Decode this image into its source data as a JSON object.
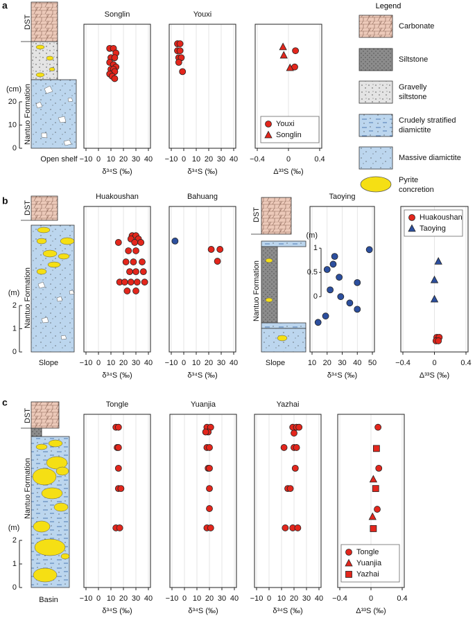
{
  "panel_labels": [
    "a",
    "b",
    "c"
  ],
  "legend": {
    "title": "Legend",
    "items": [
      "Carbonate",
      "Siltstone",
      "Gravelly siltstone",
      "Crudely stratified diamictite",
      "Massive diamictite",
      "Pyrite concretion"
    ]
  },
  "columns": [
    {
      "top": "DST",
      "formation": "Nantuo Formation",
      "unit": "(cm)",
      "ylim": [
        0,
        53.4
      ],
      "yticks": [
        0,
        10,
        20
      ],
      "setting": "Open shelf"
    },
    {
      "top": "DST",
      "formation": "Nantuo Formation",
      "unit": "(m)",
      "ylim": [
        0,
        6.27
      ],
      "yticks": [
        0,
        1,
        2
      ],
      "setting": "Slope"
    },
    {
      "top": "DST",
      "formation": "Nantuo Formation",
      "setting": "Slope"
    },
    {
      "top": "DST",
      "formation": "Nantuo Formation",
      "unit": "(m)",
      "ylim": [
        0,
        7.35
      ],
      "yticks": [
        0,
        1,
        2
      ],
      "setting": "Basin"
    }
  ],
  "chart_data": [
    {
      "type": "scatter",
      "title": "Songlin",
      "xlabel": "δ³⁴S (‰)",
      "xlim": [
        -10,
        40
      ],
      "xticks": [
        {
          "value": -10,
          "label": "−10"
        },
        0,
        10,
        20,
        30,
        40
      ],
      "ylim": [
        0,
        53.4
      ],
      "grid": true,
      "series": [
        {
          "color": "#e3261c",
          "marker": "circle",
          "x": [
            9,
            12,
            14,
            10,
            13,
            9,
            12,
            14,
            10,
            12,
            13,
            9,
            11,
            13
          ],
          "values": [
            43,
            43,
            41,
            39,
            39,
            37,
            36,
            35,
            34,
            34,
            33,
            32,
            31,
            30
          ]
        }
      ]
    },
    {
      "type": "scatter",
      "title": "Youxi",
      "xlabel": "δ³⁴S (‰)",
      "xlim": [
        -10,
        40
      ],
      "xticks": [
        {
          "value": -10,
          "label": "−10"
        },
        0,
        10,
        20,
        30,
        40
      ],
      "ylim": [
        0,
        53.4
      ],
      "grid": true,
      "series": [
        {
          "color": "#e3261c",
          "marker": "circle",
          "x": [
            -5,
            -3,
            -5,
            -3,
            -4,
            -2,
            -4,
            -1
          ],
          "values": [
            45,
            45,
            42,
            42,
            39,
            39,
            37,
            33
          ]
        }
      ]
    },
    {
      "type": "scatter",
      "xlabel": "Δ³³S (‰)",
      "xlim": [
        -0.4,
        0.4
      ],
      "xticks": [
        {
          "value": -0.4,
          "label": "−0.4"
        },
        0,
        0.4
      ],
      "ylim": [
        0,
        53.4
      ],
      "grid": true,
      "legend": "lower-right",
      "series": [
        {
          "name": "Youxi",
          "color": "#e3261c",
          "marker": "circle",
          "x": [
            0.09,
            0.08
          ],
          "values": [
            42,
            35
          ]
        },
        {
          "name": "Songlin",
          "color": "#e3261c",
          "marker": "triangle",
          "x": [
            -0.07,
            -0.06,
            0.02
          ],
          "values": [
            43.6,
            40,
            34.6
          ]
        }
      ]
    },
    {
      "type": "scatter",
      "title": "Huakoushan",
      "xlabel": "δ³⁴S (‰)",
      "xlim": [
        -10,
        40
      ],
      "xticks": [
        {
          "value": -10,
          "label": "−10"
        },
        0,
        10,
        20,
        30,
        40
      ],
      "ylim": [
        0,
        6.27
      ],
      "grid": true,
      "series": [
        {
          "color": "#e3261c",
          "marker": "circle",
          "x": [
            27,
            30,
            26,
            32,
            16,
            29,
            34,
            24,
            30,
            22,
            28,
            35,
            25,
            30,
            36,
            17,
            21,
            26,
            31,
            37,
            23,
            30
          ],
          "values": [
            5.01,
            5.01,
            4.87,
            4.87,
            4.72,
            4.72,
            4.72,
            4.36,
            4.36,
            3.88,
            3.88,
            3.88,
            3.46,
            3.46,
            3.46,
            3.01,
            3.01,
            3.01,
            3.01,
            3.01,
            2.63,
            2.63
          ]
        }
      ]
    },
    {
      "type": "scatter",
      "title": "Bahuang",
      "xlabel": "δ³⁴S (‰)",
      "xlim": [
        -10,
        40
      ],
      "xticks": [
        {
          "value": -10,
          "label": "−10"
        },
        0,
        10,
        20,
        30,
        40
      ],
      "ylim": [
        0,
        6.27
      ],
      "grid": true,
      "series": [
        {
          "color": "#2c4f9e",
          "marker": "circle",
          "x": [
            -7
          ],
          "values": [
            4.78
          ]
        },
        {
          "color": "#e3261c",
          "marker": "circle",
          "x": [
            22,
            29,
            27
          ],
          "values": [
            4.42,
            4.42,
            3.91
          ]
        }
      ]
    },
    {
      "type": "scatter",
      "title": "Taoying",
      "xlabel": "δ³⁴S (‰)",
      "xlim": [
        10,
        50
      ],
      "xticks": [
        10,
        20,
        30,
        40,
        50
      ],
      "ylim": [
        -1.14,
        1.86
      ],
      "yticks": [
        0,
        0.5,
        1
      ],
      "ylabel": "(m)",
      "grid": true,
      "series": [
        {
          "color": "#2c4f9e",
          "marker": "circle",
          "x": [
            48,
            25,
            24,
            20,
            28,
            40,
            22,
            29,
            35,
            40,
            19,
            14
          ],
          "values": [
            0.97,
            0.83,
            0.67,
            0.56,
            0.4,
            0.29,
            0.14,
            0,
            -0.13,
            -0.26,
            -0.4,
            -0.53
          ]
        }
      ]
    },
    {
      "type": "scatter",
      "xlabel": "Δ³³S (‰)",
      "xlim": [
        -0.4,
        0.4
      ],
      "xticks": [
        {
          "value": -0.4,
          "label": "−0.4"
        },
        0,
        0.4
      ],
      "ylim": [
        0,
        6.27
      ],
      "grid": true,
      "legend": "upper-left",
      "series": [
        {
          "name": "Huakoushan",
          "color": "#e3261c",
          "marker": "circle",
          "x": [
            0.03,
            0.06,
            0.02,
            0.05
          ],
          "values": [
            0.63,
            0.63,
            0.48,
            0.48
          ]
        },
        {
          "name": "Taoying",
          "color": "#2c4f9e",
          "marker": "triangle",
          "x": [
            0.05,
            0,
            0
          ],
          "values": [
            3.9,
            3.1,
            2.27
          ]
        }
      ]
    },
    {
      "type": "scatter",
      "title": "Tongle",
      "xlabel": "δ³⁴S (‰)",
      "xlim": [
        -10,
        40
      ],
      "xticks": [
        {
          "value": -10,
          "label": "−10"
        },
        0,
        10,
        20,
        30,
        40
      ],
      "ylim": [
        0,
        7.35
      ],
      "grid": true,
      "series": [
        {
          "color": "#e3261c",
          "marker": "circle",
          "x": [
            14,
            16,
            15,
            16,
            16,
            16,
            18,
            14,
            17
          ],
          "values": [
            6.8,
            6.8,
            5.94,
            5.94,
            5.06,
            4.2,
            4.2,
            2.53,
            2.53
          ]
        }
      ]
    },
    {
      "type": "scatter",
      "title": "Yuanjia",
      "xlabel": "δ³⁴S (‰)",
      "xlim": [
        -10,
        40
      ],
      "xticks": [
        {
          "value": -10,
          "label": "−10"
        },
        0,
        10,
        20,
        30,
        40
      ],
      "ylim": [
        0,
        7.35
      ],
      "grid": true,
      "series": [
        {
          "color": "#e3261c",
          "marker": "circle",
          "x": [
            18,
            21,
            19,
            17,
            18,
            20,
            19,
            20,
            20,
            20,
            18,
            21
          ],
          "values": [
            6.8,
            6.8,
            6.6,
            6.6,
            5.94,
            5.94,
            5.06,
            5.06,
            4.2,
            3.35,
            2.53,
            2.53
          ]
        }
      ]
    },
    {
      "type": "scatter",
      "title": "Yazhai",
      "xlabel": "δ³⁴S (‰)",
      "xlim": [
        -10,
        40
      ],
      "xticks": [
        {
          "value": -10,
          "label": "−10"
        },
        0,
        10,
        20,
        30,
        40
      ],
      "ylim": [
        0,
        7.35
      ],
      "grid": true,
      "series": [
        {
          "color": "#e3261c",
          "marker": "circle",
          "x": [
            19,
            22,
            24,
            20,
            12,
            20,
            22,
            21,
            15,
            17,
            13,
            19,
            23
          ],
          "values": [
            6.8,
            6.8,
            6.8,
            6.55,
            5.94,
            5.94,
            5.94,
            5.06,
            4.2,
            4.2,
            2.53,
            2.53,
            2.53
          ]
        }
      ]
    },
    {
      "type": "scatter",
      "xlabel": "Δ³³S (‰)",
      "xlim": [
        -0.4,
        0.4
      ],
      "xticks": [
        {
          "value": -0.4,
          "label": "−0.4"
        },
        0,
        0.4
      ],
      "ylim": [
        0,
        7.35
      ],
      "grid": true,
      "legend": "lower-left",
      "series": [
        {
          "name": "Tongle",
          "color": "#e3261c",
          "marker": "circle",
          "x": [
            0.09,
            0.1,
            0.08
          ],
          "values": [
            6.8,
            5.06,
            3.32
          ]
        },
        {
          "name": "Yuanjia",
          "color": "#e3261c",
          "marker": "triangle",
          "x": [
            0.03,
            0.02
          ],
          "values": [
            4.59,
            3.0
          ]
        },
        {
          "name": "Yazhai",
          "color": "#e3261c",
          "marker": "square",
          "x": [
            0.07,
            0.06,
            0.03
          ],
          "values": [
            5.9,
            4.2,
            2.5
          ]
        }
      ]
    }
  ]
}
